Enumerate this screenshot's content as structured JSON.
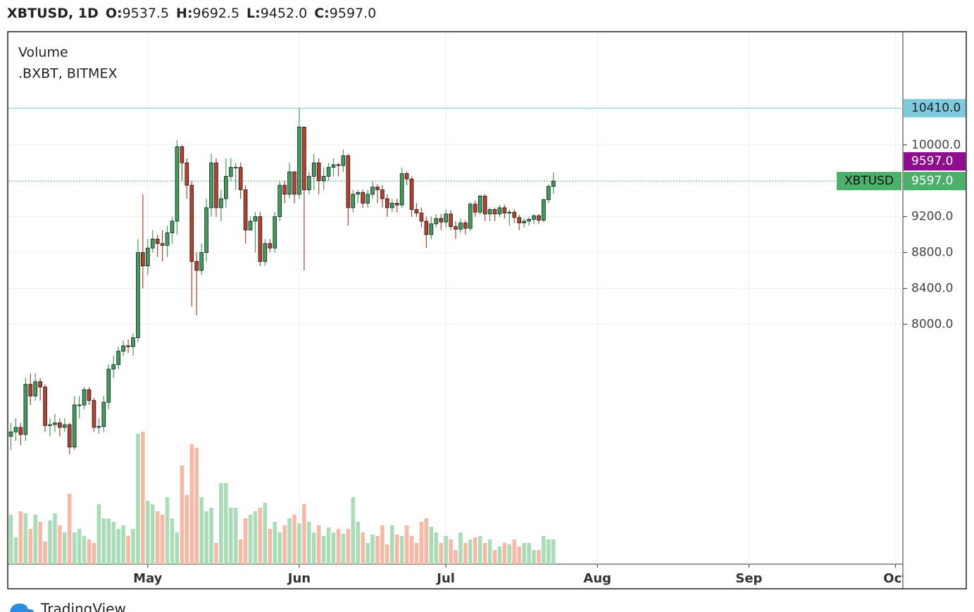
{
  "chart_data": {
    "type": "candlestick",
    "header": {
      "symbol": "XBTUSD, 1D",
      "fields": [
        {
          "label": "O:",
          "value": "9537.5"
        },
        {
          "label": "H:",
          "value": "9692.5"
        },
        {
          "label": "L:",
          "value": "9452.0"
        },
        {
          "label": "C:",
          "value": "9597.0"
        }
      ]
    },
    "legend": [
      "Volume",
      ".BXBT, BITMEX"
    ],
    "footer": "TradingView",
    "categories": [
      null,
      null,
      null,
      null,
      null,
      null,
      null,
      null,
      null,
      null,
      null,
      null,
      null,
      null,
      null,
      null,
      null,
      null,
      null,
      null,
      null,
      null,
      null,
      null,
      null,
      null,
      null,
      null,
      "May",
      null,
      null,
      null,
      null,
      null,
      null,
      null,
      null,
      null,
      null,
      null,
      null,
      null,
      null,
      null,
      null,
      null,
      null,
      null,
      null,
      null,
      null,
      null,
      null,
      null,
      null,
      null,
      null,
      null,
      null,
      "Jun",
      null,
      null,
      null,
      null,
      null,
      null,
      null,
      null,
      null,
      null,
      null,
      null,
      null,
      null,
      null,
      null,
      null,
      null,
      null,
      null,
      null,
      null,
      null,
      null,
      null,
      null,
      null,
      null,
      null,
      "Jul",
      null,
      null,
      null,
      null,
      null,
      null,
      null,
      null,
      null,
      null,
      null,
      null,
      null,
      null,
      null,
      null,
      null,
      null,
      null,
      null,
      null,
      null,
      null,
      null,
      null,
      null,
      null,
      null,
      null,
      null,
      "Aug",
      null,
      null,
      null,
      null,
      null,
      null,
      null,
      null,
      null,
      null,
      null,
      null,
      null,
      null,
      null,
      null,
      null,
      null,
      null,
      null,
      null,
      null,
      null,
      null,
      null,
      null,
      null,
      null,
      null,
      null,
      "Sep",
      null,
      null,
      null,
      null,
      null,
      null,
      null,
      null,
      null,
      null,
      null,
      null,
      null,
      null,
      null,
      null,
      null,
      null,
      null,
      null,
      null,
      null,
      null,
      null,
      null,
      null,
      null,
      null,
      null,
      "Oct",
      null
    ],
    "open": [
      6750,
      6800,
      6850,
      6770,
      7330,
      7200,
      7360,
      7300,
      6870,
      6880,
      6900,
      6850,
      6880,
      6630,
      7100,
      7100,
      7270,
      7150,
      6850,
      6860,
      7130,
      7500,
      7550,
      7700,
      7760,
      7750,
      7850,
      8800,
      8650,
      8850,
      8950,
      8900,
      8880,
      9020,
      9150,
      9980,
      9800,
      9550,
      8700,
      8600,
      8800,
      9300,
      9800,
      9300,
      9400,
      9650,
      9750,
      9750,
      9500,
      9050,
      9150,
      9200,
      8700,
      8900,
      8850,
      9200,
      9550,
      9450,
      9700,
      9450,
      10200,
      9500,
      9650,
      9800,
      9600,
      9650,
      9750,
      9780,
      9770,
      9880,
      9300,
      9450,
      9470,
      9350,
      9450,
      9530,
      9500,
      9400,
      9300,
      9350,
      9330,
      9680,
      9620,
      9280,
      9240,
      9150,
      9000,
      9120,
      9180,
      9140,
      9230,
      9090,
      9060,
      9130,
      9070,
      9340,
      9250,
      9430,
      9230,
      9280,
      9230,
      9300,
      9240,
      9250,
      9190,
      9130,
      9150,
      9170,
      9210,
      9160,
      9390,
      9537.5,
      null,
      null,
      null,
      null,
      null,
      null,
      null,
      null,
      null,
      null,
      null,
      null,
      null,
      null,
      null,
      null,
      null,
      null,
      null,
      null,
      null,
      null,
      null,
      null,
      null,
      null,
      null,
      null,
      null,
      null,
      null,
      null,
      null,
      null,
      null,
      null,
      null,
      null,
      null,
      null,
      null,
      null,
      null,
      null,
      null,
      null,
      null,
      null,
      null,
      null,
      null,
      null,
      null,
      null,
      null,
      null,
      null,
      null,
      null,
      null,
      null,
      null,
      null,
      null,
      null,
      null,
      null,
      null,
      null,
      null,
      null
    ],
    "high": [
      6900,
      6950,
      6900,
      7400,
      7450,
      7450,
      7400,
      7330,
      6950,
      7000,
      6950,
      6950,
      6900,
      7200,
      7200,
      7300,
      7300,
      7180,
      6950,
      7200,
      7550,
      7650,
      7750,
      7820,
      7830,
      7900,
      8950,
      9450,
      8950,
      9050,
      9000,
      9050,
      9100,
      9200,
      10050,
      10000,
      9850,
      9600,
      8800,
      8900,
      9400,
      9900,
      9850,
      9500,
      9850,
      9850,
      9800,
      9800,
      9550,
      9200,
      9250,
      9250,
      8950,
      8950,
      9250,
      9600,
      9600,
      9800,
      9700,
      10410,
      10200,
      9700,
      9900,
      9850,
      9750,
      9800,
      9850,
      9800,
      9950,
      9900,
      9500,
      9500,
      9500,
      9500,
      9600,
      9560,
      9550,
      9450,
      9400,
      9400,
      9750,
      9700,
      9650,
      9350,
      9300,
      9200,
      9200,
      9230,
      9230,
      9280,
      9270,
      9150,
      9180,
      9160,
      9360,
      9380,
      9440,
      9450,
      9300,
      9300,
      9330,
      9330,
      9280,
      9280,
      9220,
      9180,
      9200,
      9230,
      9230,
      9400,
      9560,
      9692.5,
      null,
      null,
      null,
      null,
      null,
      null,
      null,
      null,
      null,
      null,
      null,
      null,
      null,
      null,
      null,
      null,
      null,
      null,
      null,
      null,
      null,
      null,
      null,
      null,
      null,
      null,
      null,
      null,
      null,
      null,
      null,
      null,
      null,
      null,
      null,
      null,
      null,
      null,
      null,
      null,
      null,
      null,
      null,
      null,
      null,
      null,
      null,
      null,
      null,
      null,
      null,
      null,
      null,
      null,
      null,
      null,
      null,
      null,
      null,
      null,
      null,
      null,
      null,
      null,
      null,
      null,
      null,
      null,
      null,
      null,
      null
    ],
    "low": [
      6600,
      6700,
      6650,
      6700,
      7100,
      7150,
      7150,
      6800,
      6750,
      6800,
      6750,
      6800,
      6550,
      6600,
      6950,
      7050,
      7100,
      6800,
      6780,
      6800,
      7050,
      7400,
      7500,
      7650,
      7680,
      7650,
      7800,
      8400,
      8550,
      8800,
      8750,
      8700,
      8750,
      8900,
      9000,
      9600,
      9400,
      8200,
      8100,
      8550,
      8700,
      9200,
      9200,
      9150,
      9300,
      9600,
      9500,
      9400,
      8900,
      9050,
      8800,
      8650,
      8650,
      8800,
      8800,
      9150,
      9350,
      9400,
      9350,
      9400,
      8600,
      9450,
      9500,
      9450,
      9500,
      9600,
      9650,
      9650,
      9700,
      9100,
      9250,
      9350,
      9300,
      9300,
      9400,
      9350,
      9300,
      9200,
      9250,
      9250,
      9300,
      9550,
      9200,
      9200,
      9080,
      8850,
      8950,
      9080,
      9050,
      9080,
      9050,
      8950,
      9020,
      9000,
      9040,
      9200,
      9220,
      9150,
      9150,
      9150,
      9200,
      9180,
      9100,
      9130,
      9050,
      9080,
      9100,
      9120,
      9120,
      9140,
      9350,
      9452,
      null,
      null,
      null,
      null,
      null,
      null,
      null,
      null,
      null,
      null,
      null,
      null,
      null,
      null,
      null,
      null,
      null,
      null,
      null,
      null,
      null,
      null,
      null,
      null,
      null,
      null,
      null,
      null,
      null,
      null,
      null,
      null,
      null,
      null,
      null,
      null,
      null,
      null,
      null,
      null,
      null,
      null,
      null,
      null,
      null,
      null,
      null,
      null,
      null,
      null,
      null,
      null,
      null,
      null,
      null,
      null,
      null,
      null,
      null,
      null,
      null,
      null,
      null,
      null,
      null,
      null,
      null,
      null,
      null,
      null,
      null
    ],
    "close": [
      6800,
      6850,
      6770,
      7330,
      7200,
      7360,
      7300,
      6870,
      6880,
      6900,
      6850,
      6880,
      6630,
      7100,
      7100,
      7270,
      7150,
      6850,
      6860,
      7130,
      7500,
      7550,
      7700,
      7760,
      7750,
      7850,
      8800,
      8650,
      8850,
      8950,
      8900,
      8880,
      9020,
      9150,
      9980,
      9800,
      9550,
      8700,
      8600,
      8800,
      9300,
      9800,
      9300,
      9400,
      9650,
      9750,
      9750,
      9500,
      9050,
      9150,
      9200,
      8700,
      8900,
      8850,
      9200,
      9550,
      9450,
      9700,
      9450,
      10200,
      9500,
      9650,
      9800,
      9600,
      9650,
      9750,
      9780,
      9770,
      9880,
      9300,
      9450,
      9470,
      9350,
      9450,
      9530,
      9500,
      9400,
      9300,
      9350,
      9330,
      9680,
      9620,
      9280,
      9240,
      9150,
      9000,
      9120,
      9180,
      9140,
      9230,
      9090,
      9060,
      9130,
      9070,
      9340,
      9250,
      9430,
      9230,
      9280,
      9230,
      9300,
      9240,
      9250,
      9190,
      9130,
      9150,
      9170,
      9210,
      9160,
      9390,
      9537.5,
      9597,
      null,
      null,
      null,
      null,
      null,
      null,
      null,
      null,
      null,
      null,
      null,
      null,
      null,
      null,
      null,
      null,
      null,
      null,
      null,
      null,
      null,
      null,
      null,
      null,
      null,
      null,
      null,
      null,
      null,
      null,
      null,
      null,
      null,
      null,
      null,
      null,
      null,
      null,
      null,
      null,
      null,
      null,
      null,
      null,
      null,
      null,
      null,
      null,
      null,
      null,
      null,
      null,
      null,
      null,
      null,
      null,
      null,
      null,
      null,
      null,
      null,
      null,
      null,
      null,
      null,
      null,
      null,
      null,
      null,
      null,
      null
    ],
    "volume": [
      70,
      38,
      75,
      72,
      50,
      70,
      60,
      32,
      62,
      72,
      55,
      45,
      100,
      45,
      50,
      40,
      35,
      30,
      85,
      65,
      65,
      60,
      50,
      55,
      40,
      50,
      185,
      188,
      90,
      85,
      75,
      70,
      95,
      65,
      45,
      140,
      98,
      170,
      165,
      95,
      75,
      80,
      30,
      115,
      115,
      80,
      80,
      35,
      65,
      70,
      75,
      80,
      87,
      50,
      60,
      45,
      55,
      65,
      70,
      58,
      85,
      60,
      45,
      55,
      40,
      52,
      45,
      50,
      43,
      50,
      95,
      60,
      45,
      30,
      42,
      40,
      55,
      28,
      55,
      42,
      40,
      55,
      40,
      30,
      60,
      65,
      53,
      45,
      30,
      40,
      35,
      20,
      45,
      30,
      35,
      38,
      40,
      30,
      35,
      20,
      25,
      30,
      28,
      35,
      25,
      30,
      30,
      20,
      20,
      40,
      35,
      35,
      null,
      null,
      null,
      null,
      null,
      null,
      null,
      null,
      null,
      null,
      null,
      null,
      null,
      null,
      null,
      null,
      null,
      null,
      null,
      null,
      null,
      null,
      null,
      null,
      null,
      null,
      null,
      null,
      null,
      null,
      null,
      null,
      null,
      null,
      null,
      null,
      null,
      null,
      null,
      null,
      null,
      null,
      null,
      null,
      null,
      null,
      null,
      null,
      null,
      null,
      null,
      null,
      null,
      null,
      null,
      null,
      null,
      null,
      null,
      null,
      null,
      null,
      null,
      null,
      null,
      null,
      null,
      null,
      null,
      null,
      null
    ],
    "up_color": "#3f9e5e",
    "down_color": "#b5422f",
    "volume_up_color": "#a9dcb7",
    "volume_down_color": "#f7b9a6",
    "ylim": [
      5325,
      11255
    ],
    "yticks": [
      {
        "value": 10000,
        "label": "10000.0"
      },
      {
        "value": 9200,
        "label": "9200.0"
      },
      {
        "value": 8800,
        "label": "8800.0"
      },
      {
        "value": 8400,
        "label": "8400.0"
      },
      {
        "value": 8000,
        "label": "8000.0"
      }
    ],
    "grid": true,
    "price_lines": [
      {
        "value": 10410,
        "label": "10410.0",
        "color": "#7ccadb",
        "line": "solid"
      },
      {
        "value": 9597,
        "label": "9597.0",
        "color": "#8e0e8e"
      },
      {
        "value": 9597,
        "label": "9597.0",
        "color": "#4caf6a",
        "line": "dotted",
        "name": "XBTUSD"
      }
    ]
  }
}
